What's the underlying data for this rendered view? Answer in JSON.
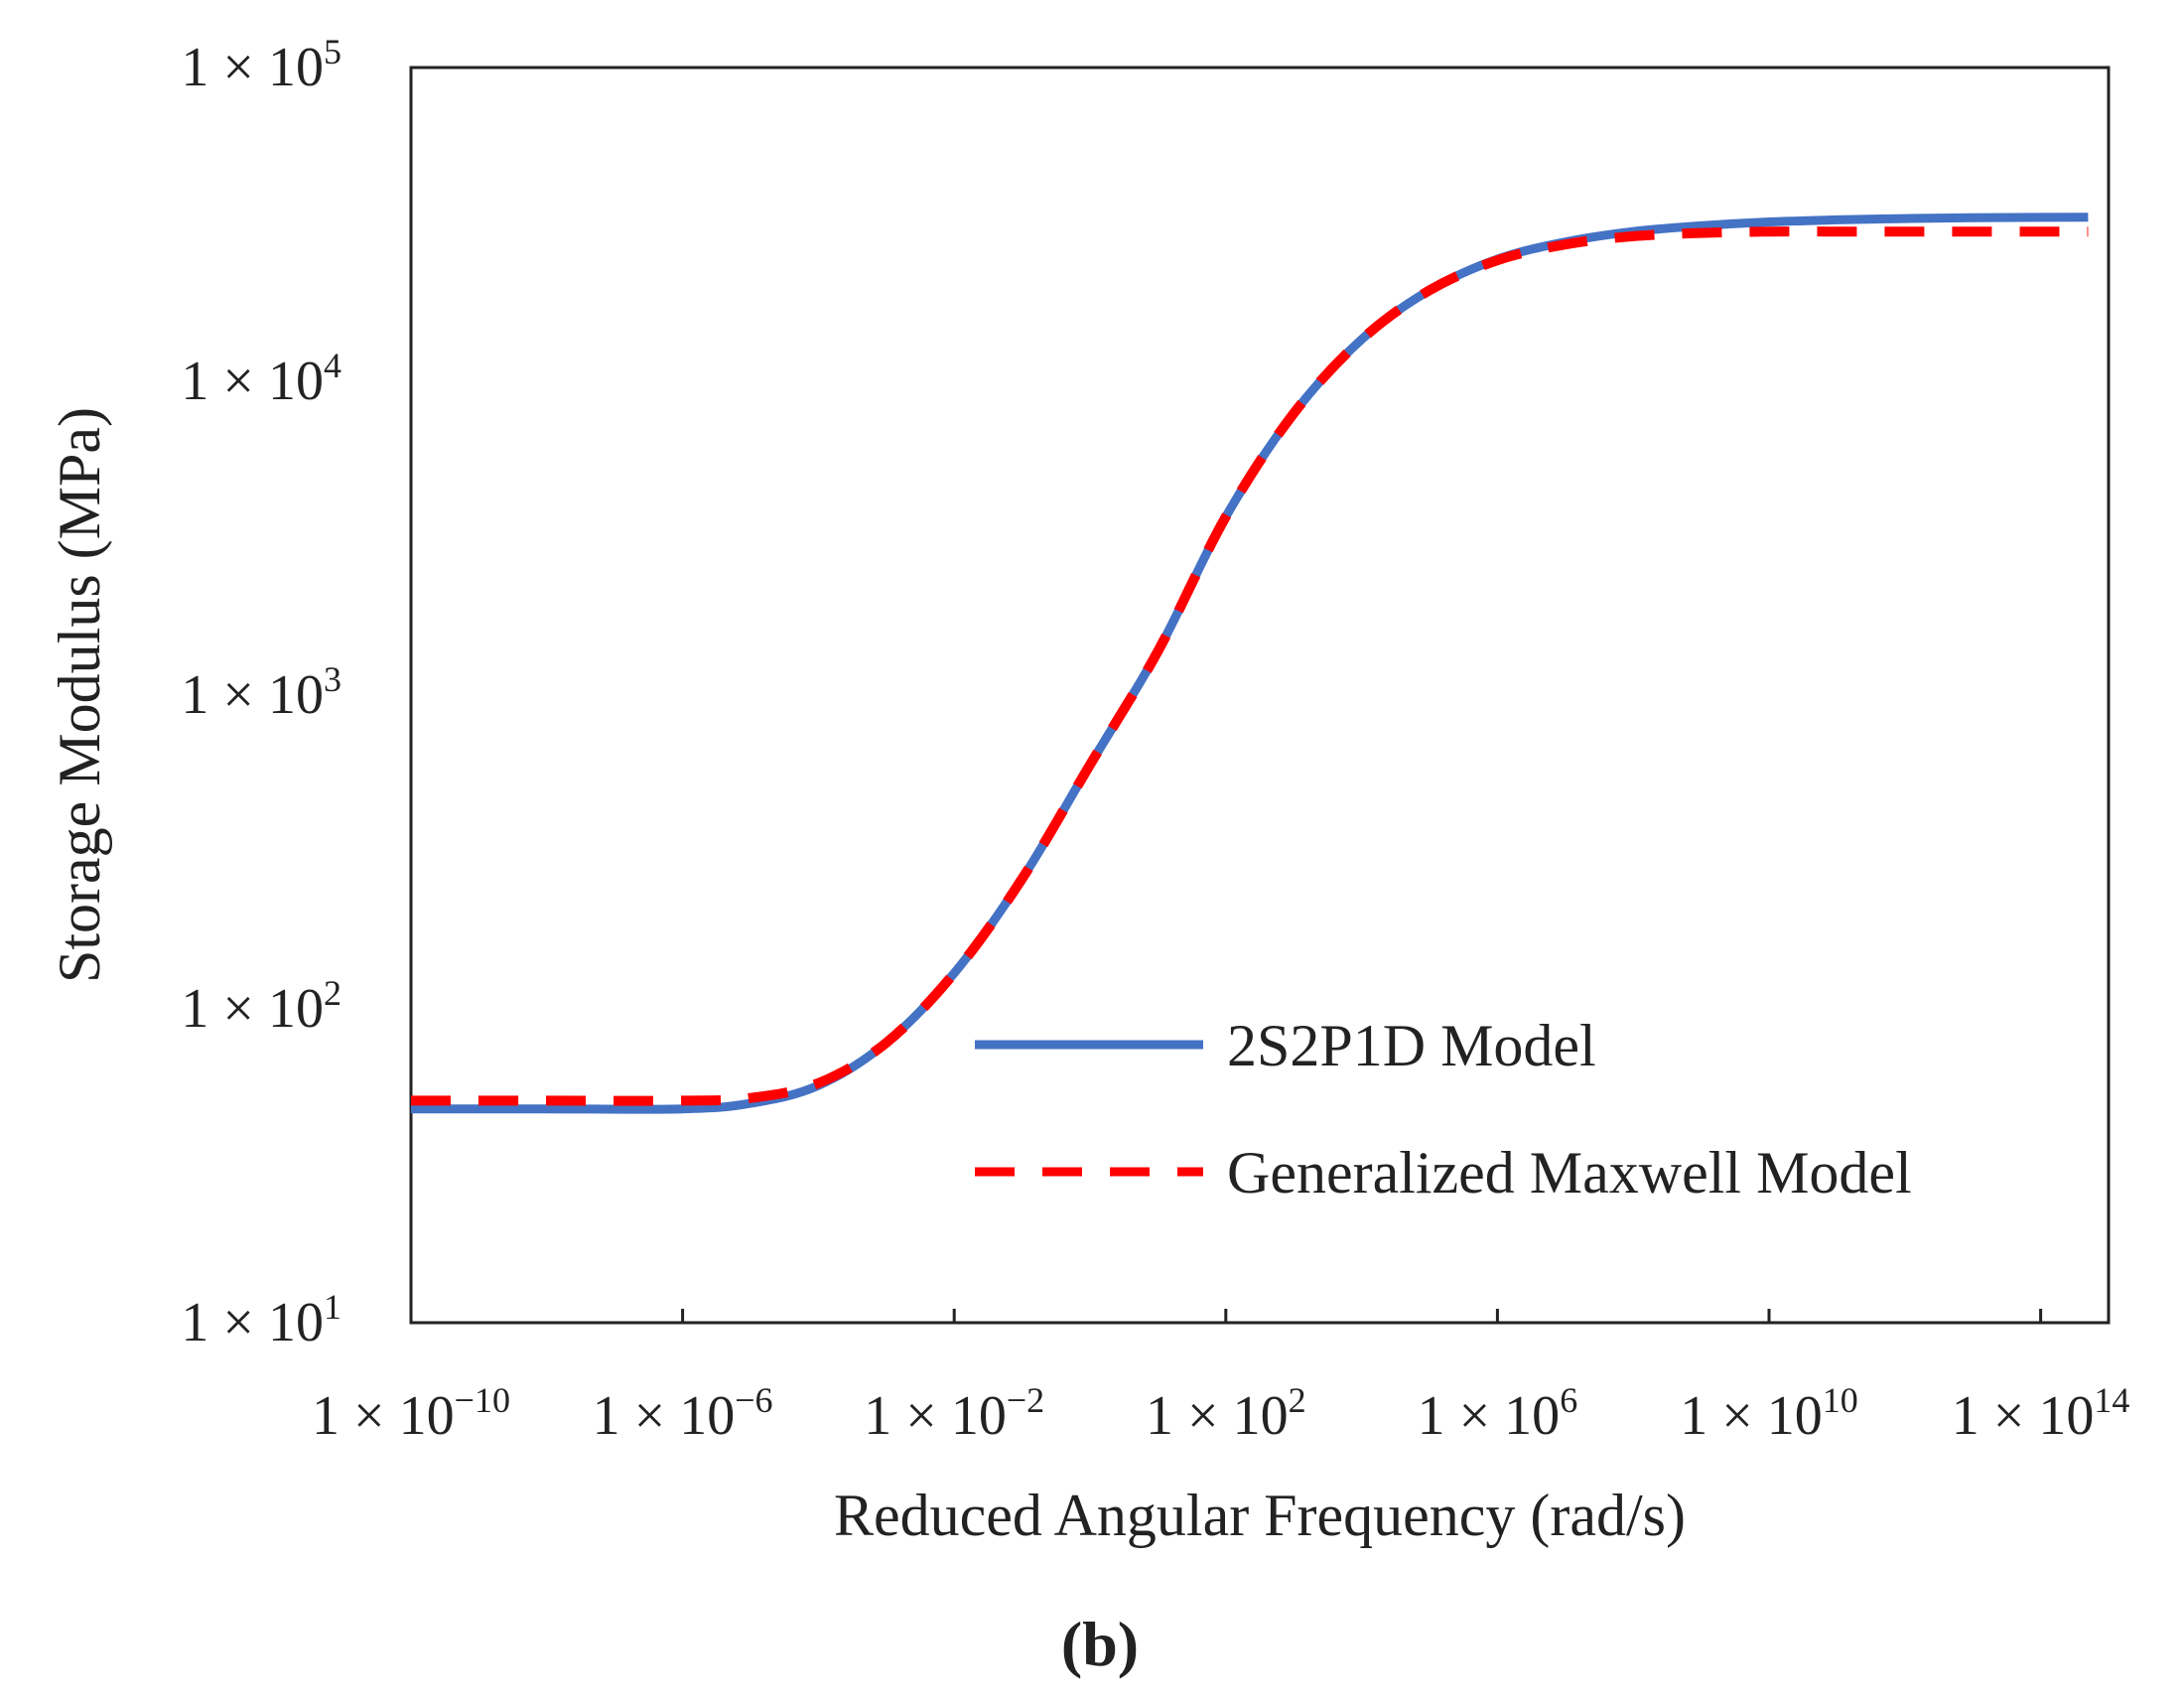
{
  "chart_data": {
    "type": "line",
    "title": "",
    "xlabel": "Reduced Angular Frequency (rad/s)",
    "ylabel": "Storage Modulus (MPa)",
    "xscale": "log",
    "yscale": "log",
    "xlim": [
      1e-10,
      1000000000000000.0
    ],
    "ylim": [
      10,
      100000
    ],
    "x_tick_labels": [
      {
        "coef": "1 × 10",
        "exp": "−10",
        "value": 1e-10
      },
      {
        "coef": "1 × 10",
        "exp": "−6",
        "value": 1e-06
      },
      {
        "coef": "1 × 10",
        "exp": "−2",
        "value": 0.01
      },
      {
        "coef": "1 × 10",
        "exp": "2",
        "value": 100.0
      },
      {
        "coef": "1 × 10",
        "exp": "6",
        "value": 1000000.0
      },
      {
        "coef": "1 × 10",
        "exp": "10",
        "value": 10000000000.0
      },
      {
        "coef": "1 × 10",
        "exp": "14",
        "value": 100000000000000.0
      }
    ],
    "y_tick_labels": [
      {
        "coef": "1 × 10",
        "exp": "1",
        "value": 10
      },
      {
        "coef": "1 × 10",
        "exp": "2",
        "value": 100
      },
      {
        "coef": "1 × 10",
        "exp": "3",
        "value": 1000
      },
      {
        "coef": "1 × 10",
        "exp": "4",
        "value": 10000
      },
      {
        "coef": "1 × 10",
        "exp": "5",
        "value": 100000
      }
    ],
    "legend_position": "lower-right",
    "series": [
      {
        "name": "2S2P1D Model",
        "color": "#4472C4",
        "style": "solid",
        "x": [
          1e-10,
          1e-08,
          1e-06,
          1e-05,
          0.0001,
          0.001,
          0.01,
          0.1,
          1.0,
          10.0,
          100.0,
          1000.0,
          10000.0,
          100000.0,
          1000000.0,
          10000000.0,
          100000000.0,
          1000000000.0,
          10000000000.0,
          100000000000.0,
          1000000000000.0,
          10000000000000.0,
          100000000000000.0,
          500000000000000.0
        ],
        "y": [
          48,
          48,
          48,
          50,
          57,
          78,
          130,
          260,
          600,
          1380,
          3700,
          7900,
          13600,
          19500,
          24500,
          27800,
          30000,
          31300,
          32200,
          32700,
          33000,
          33200,
          33300,
          33350
        ]
      },
      {
        "name": "Generalized Maxwell Model",
        "color": "#FF0000",
        "style": "dashed",
        "x": [
          1e-10,
          1e-08,
          1e-06,
          1e-05,
          0.0001,
          0.001,
          0.01,
          0.1,
          1.0,
          10.0,
          100.0,
          1000.0,
          10000.0,
          100000.0,
          1000000.0,
          10000000.0,
          100000000.0,
          1000000000.0,
          10000000000.0,
          100000000000.0,
          1000000000000.0,
          10000000000000.0,
          100000000000000.0,
          500000000000000.0
        ],
        "y": [
          51,
          51,
          51,
          52,
          58,
          78,
          130,
          260,
          600,
          1380,
          3700,
          7900,
          13600,
          19500,
          24300,
          27300,
          29000,
          29700,
          30000,
          30000,
          30000,
          30000,
          30000,
          30000
        ]
      }
    ]
  },
  "panel_label": "b"
}
